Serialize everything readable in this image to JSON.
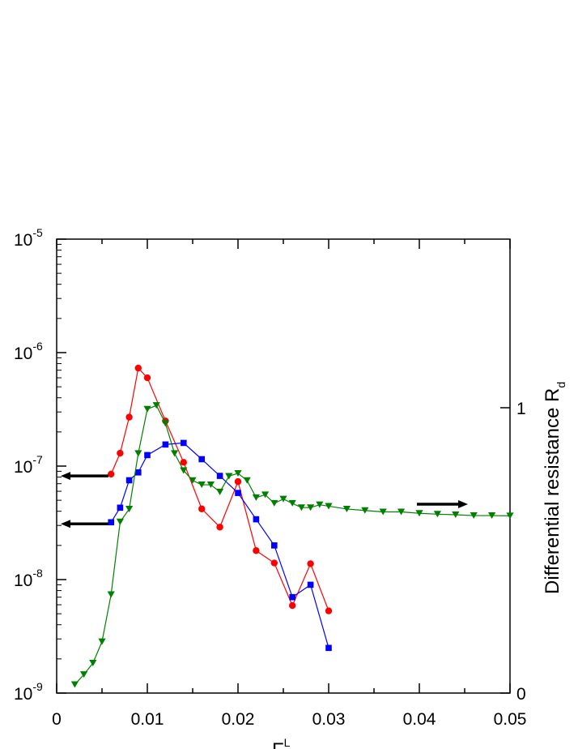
{
  "chart_data": {
    "type": "line",
    "title": "",
    "xlabel": "F",
    "xlabel_superscript": "L",
    "ylabel_left": "",
    "ylabel_right": "Differential resistance R",
    "ylabel_right_subscript": "d",
    "xlim": [
      0,
      0.05
    ],
    "ylim_left": [
      1e-09,
      1e-05
    ],
    "ylim_left_scale": "log",
    "ylim_right": [
      0,
      1
    ],
    "x_ticks": [
      "0",
      "0.01",
      "0.02",
      "0.03",
      "0.04",
      "0.05"
    ],
    "y_left_ticks": [
      {
        "base": "10",
        "exp": "-9"
      },
      {
        "base": "10",
        "exp": "-8"
      },
      {
        "base": "10",
        "exp": "-7"
      },
      {
        "base": "10",
        "exp": "-6"
      },
      {
        "base": "10",
        "exp": "-5"
      }
    ],
    "y_right_ticks": [
      "0",
      "1"
    ],
    "grid": false,
    "legend": "none",
    "series": [
      {
        "color": "#ff0000",
        "marker": "circle",
        "axis": "left",
        "x": [
          0.006,
          0.007,
          0.008,
          0.009,
          0.01,
          0.012,
          0.014,
          0.016,
          0.018,
          0.02,
          0.022,
          0.024,
          0.026,
          0.028,
          0.03
        ],
        "y": [
          8.5e-08,
          1.3e-07,
          2.7e-07,
          7.3e-07,
          6e-07,
          2.5e-07,
          1.08e-07,
          4.2e-08,
          2.9e-08,
          7.3e-08,
          1.8e-08,
          1.4e-08,
          5.9e-09,
          1.38e-08,
          5.3e-09
        ]
      },
      {
        "color": "#0000ff",
        "marker": "square",
        "axis": "left",
        "x": [
          0.006,
          0.007,
          0.008,
          0.009,
          0.01,
          0.012,
          0.014,
          0.016,
          0.018,
          0.02,
          0.022,
          0.024,
          0.026,
          0.028,
          0.03
        ],
        "y": [
          3.2e-08,
          4.3e-08,
          7.5e-08,
          8.8e-08,
          1.25e-07,
          1.55e-07,
          1.6e-07,
          1.15e-07,
          8.2e-08,
          5.8e-08,
          3.4e-08,
          2e-08,
          7e-09,
          9e-09,
          2.5e-09
        ]
      },
      {
        "color": "#008000",
        "marker": "triangle-down",
        "axis": "right",
        "x": [
          0.002,
          0.003,
          0.004,
          0.005,
          0.006,
          0.007,
          0.008,
          0.009,
          0.01,
          0.011,
          0.012,
          0.013,
          0.014,
          0.015,
          0.016,
          0.017,
          0.018,
          0.019,
          0.02,
          0.021,
          0.022,
          0.023,
          0.024,
          0.025,
          0.026,
          0.027,
          0.028,
          0.029,
          0.03,
          0.032,
          0.034,
          0.036,
          0.038,
          0.04,
          0.042,
          0.044,
          0.046,
          0.048,
          0.05
        ],
        "y": [
          0.03,
          0.065,
          0.105,
          0.18,
          0.345,
          0.6,
          0.645,
          0.84,
          0.995,
          1.008,
          0.945,
          0.84,
          0.78,
          0.745,
          0.73,
          0.73,
          0.705,
          0.76,
          0.77,
          0.745,
          0.685,
          0.695,
          0.665,
          0.68,
          0.665,
          0.65,
          0.65,
          0.66,
          0.655,
          0.645,
          0.64,
          0.635,
          0.635,
          0.63,
          0.627,
          0.625,
          0.622,
          0.622,
          0.621
        ]
      }
    ],
    "annotations": [
      {
        "kind": "arrow",
        "direction": "left",
        "series_color": "#ff0000",
        "x_data": 0.0057,
        "y_data": 8.2e-08
      },
      {
        "kind": "arrow",
        "direction": "left",
        "series_color": "#0000ff",
        "x_data": 0.0057,
        "y_data": 3.1e-08
      },
      {
        "kind": "arrow",
        "direction": "right",
        "series_color": "#008000",
        "x_data": 0.04,
        "y_right": 0.662
      }
    ]
  }
}
